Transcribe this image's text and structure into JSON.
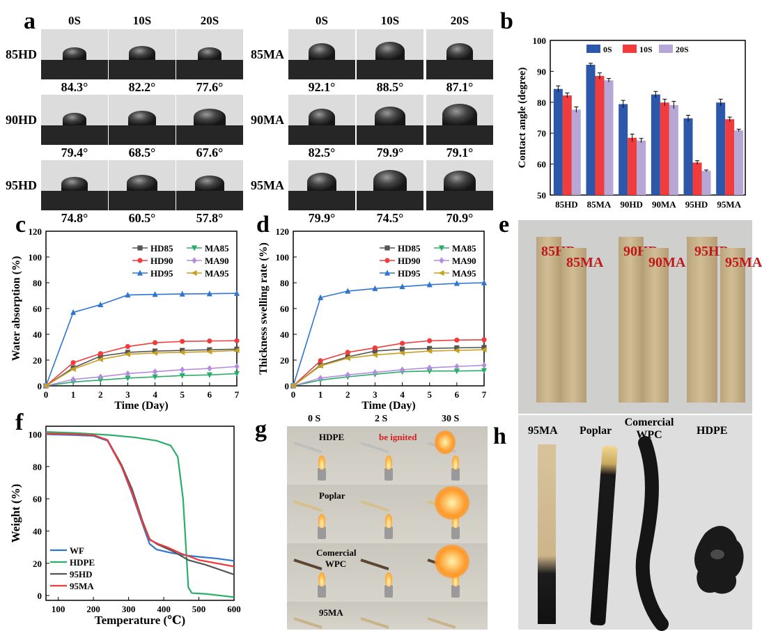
{
  "panel_labels": {
    "a": "a",
    "b": "b",
    "c": "c",
    "d": "d",
    "e": "e",
    "f": "f",
    "g": "g",
    "h": "h"
  },
  "panel_a": {
    "time_headers": [
      "0S",
      "10S",
      "20S"
    ],
    "left": {
      "rows": [
        {
          "label": "85HD",
          "angles": [
            "84.3°",
            "82.2°",
            "77.6°"
          ]
        },
        {
          "label": "90HD",
          "angles": [
            "79.4°",
            "68.5°",
            "67.6°"
          ]
        },
        {
          "label": "95HD",
          "angles": [
            "74.8°",
            "60.5°",
            "57.8°"
          ]
        }
      ]
    },
    "right": {
      "rows": [
        {
          "label": "85MA",
          "angles": [
            "92.1°",
            "88.5°",
            "87.1°"
          ]
        },
        {
          "label": "90MA",
          "angles": [
            "82.5°",
            "79.9°",
            "79.1°"
          ]
        },
        {
          "label": "95MA",
          "angles": [
            "79.9°",
            "74.5°",
            "70.9°"
          ]
        }
      ]
    }
  },
  "panel_e": {
    "labels": [
      "85HD",
      "85MA",
      "90HD",
      "90MA",
      "95HD",
      "95MA"
    ]
  },
  "panel_g": {
    "headers": [
      "0 S",
      "2 S",
      "30 S"
    ],
    "ignited_note": "be ignited",
    "rows": [
      "HDPE",
      "Poplar",
      "Comercial WPC",
      "95MA"
    ]
  },
  "panel_h": {
    "labels": [
      "95MA",
      "Poplar",
      "Comercial WPC",
      "HDPE"
    ]
  },
  "chart_data": [
    {
      "id": "b",
      "type": "bar",
      "categories": [
        "85HD",
        "85MA",
        "90HD",
        "90MA",
        "95HD",
        "95MA"
      ],
      "series": [
        {
          "name": "0S",
          "color": "#2d57a8",
          "values": [
            84.3,
            92.1,
            79.4,
            82.5,
            74.8,
            79.9
          ]
        },
        {
          "name": "10S",
          "color": "#f03c3c",
          "values": [
            82.2,
            88.5,
            68.5,
            79.9,
            60.5,
            74.5
          ]
        },
        {
          "name": "20S",
          "color": "#b7a7d6",
          "values": [
            77.6,
            87.1,
            67.6,
            79.1,
            57.8,
            70.9
          ]
        }
      ],
      "errors": [
        [
          1,
          0.5,
          1.2,
          1,
          1,
          1.1
        ],
        [
          0.8,
          1,
          1.2,
          1.1,
          0.6,
          0.7
        ],
        [
          0.9,
          0.6,
          0.7,
          1.2,
          0.3,
          0.4
        ]
      ],
      "ylabel": "Contact angle (degree)",
      "ylim": [
        50,
        100
      ],
      "yticks": [
        50,
        60,
        70,
        80,
        90,
        100
      ],
      "legend": "top-center"
    },
    {
      "id": "c",
      "type": "line",
      "x": [
        0,
        1,
        2,
        3,
        4,
        5,
        6,
        7
      ],
      "series": [
        {
          "name": "HD85",
          "color": "#555555",
          "marker": "square",
          "values": [
            0,
            14,
            23,
            26,
            27,
            27.5,
            28,
            28.5
          ]
        },
        {
          "name": "HD90",
          "color": "#f03c3c",
          "marker": "circle",
          "values": [
            0,
            18,
            25,
            30.5,
            33.5,
            34.5,
            34.8,
            35
          ]
        },
        {
          "name": "HD95",
          "color": "#2f74d0",
          "marker": "triangle-up",
          "values": [
            0,
            57,
            63,
            70.5,
            71,
            71.3,
            71.5,
            71.8
          ]
        },
        {
          "name": "MA85",
          "color": "#2aad6a",
          "marker": "triangle-down",
          "values": [
            0,
            3,
            4.5,
            6,
            7,
            8,
            8.5,
            9.5
          ]
        },
        {
          "name": "MA90",
          "color": "#b48be0",
          "marker": "diamond",
          "values": [
            0,
            5,
            7,
            9.5,
            11,
            12.5,
            13.5,
            15
          ]
        },
        {
          "name": "MA95",
          "color": "#c8a020",
          "marker": "triangle-left",
          "values": [
            0,
            13,
            20.5,
            24.5,
            25.5,
            26,
            26.5,
            27.5
          ]
        }
      ],
      "xlabel": "Time (Day)",
      "ylabel": "Water absorption (%)",
      "xlim": [
        0,
        7
      ],
      "ylim": [
        0,
        120
      ],
      "xticks": [
        0,
        1,
        2,
        3,
        4,
        5,
        6,
        7
      ],
      "yticks": [
        0,
        20,
        40,
        60,
        80,
        100,
        120
      ],
      "legend": "upper-right"
    },
    {
      "id": "d",
      "type": "line",
      "x": [
        0,
        1,
        2,
        3,
        4,
        5,
        6,
        7
      ],
      "series": [
        {
          "name": "HD85",
          "color": "#555555",
          "marker": "square",
          "values": [
            0,
            16,
            22.5,
            27,
            28.5,
            29,
            29.5,
            29.8
          ]
        },
        {
          "name": "HD90",
          "color": "#f03c3c",
          "marker": "circle",
          "values": [
            0,
            19.5,
            26,
            29.5,
            33,
            35,
            35.5,
            35.8
          ]
        },
        {
          "name": "HD95",
          "color": "#2f74d0",
          "marker": "triangle-up",
          "values": [
            0,
            68.5,
            73.5,
            75.5,
            77,
            78.5,
            79.5,
            80
          ]
        },
        {
          "name": "MA85",
          "color": "#2aad6a",
          "marker": "triangle-down",
          "values": [
            0,
            4.5,
            7,
            9,
            11,
            11.5,
            11.5,
            11.8
          ]
        },
        {
          "name": "MA90",
          "color": "#b48be0",
          "marker": "diamond",
          "values": [
            0,
            6,
            8.5,
            10.5,
            12.5,
            14,
            15,
            16
          ]
        },
        {
          "name": "MA95",
          "color": "#c8a020",
          "marker": "triangle-left",
          "values": [
            0,
            15.5,
            21.5,
            24,
            25.5,
            27,
            27.5,
            28
          ]
        }
      ],
      "xlabel": "Time (Day)",
      "ylabel": "Thickness swelling rate (%)",
      "xlim": [
        0,
        7
      ],
      "ylim": [
        0,
        120
      ],
      "xticks": [
        0,
        1,
        2,
        3,
        4,
        5,
        6,
        7
      ],
      "yticks": [
        0,
        20,
        40,
        60,
        80,
        100,
        120
      ],
      "legend": "upper-right"
    },
    {
      "id": "f",
      "type": "line",
      "series": [
        {
          "name": "WF",
          "color": "#2f74d0",
          "points": [
            [
              65,
              100
            ],
            [
              150,
              99.5
            ],
            [
              200,
              99
            ],
            [
              240,
              96
            ],
            [
              280,
              80
            ],
            [
              310,
              63
            ],
            [
              340,
              44
            ],
            [
              360,
              32
            ],
            [
              380,
              28.5
            ],
            [
              420,
              26.5
            ],
            [
              460,
              25
            ],
            [
              500,
              24
            ],
            [
              550,
              23
            ],
            [
              600,
              21.5
            ]
          ]
        },
        {
          "name": "HDPE",
          "color": "#2aad6a",
          "points": [
            [
              65,
              101.5
            ],
            [
              150,
              100.8
            ],
            [
              250,
              99.5
            ],
            [
              320,
              98
            ],
            [
              380,
              96
            ],
            [
              420,
              93
            ],
            [
              440,
              86
            ],
            [
              455,
              60
            ],
            [
              470,
              5
            ],
            [
              480,
              1.5
            ],
            [
              520,
              1
            ],
            [
              560,
              0
            ],
            [
              600,
              -1
            ]
          ]
        },
        {
          "name": "95HD",
          "color": "#555555",
          "points": [
            [
              65,
              100.5
            ],
            [
              150,
              100
            ],
            [
              200,
              99.5
            ],
            [
              240,
              96.5
            ],
            [
              280,
              81
            ],
            [
              310,
              66
            ],
            [
              340,
              46
            ],
            [
              360,
              35
            ],
            [
              380,
              32
            ],
            [
              400,
              30
            ],
            [
              430,
              27
            ],
            [
              470,
              22
            ],
            [
              520,
              19
            ],
            [
              560,
              16
            ],
            [
              600,
              13
            ]
          ]
        },
        {
          "name": "95MA",
          "color": "#f03c3c",
          "points": [
            [
              65,
              100.5
            ],
            [
              150,
              100
            ],
            [
              200,
              99.5
            ],
            [
              240,
              96.5
            ],
            [
              280,
              80
            ],
            [
              310,
              64
            ],
            [
              340,
              45
            ],
            [
              360,
              34.5
            ],
            [
              385,
              32
            ],
            [
              410,
              30
            ],
            [
              430,
              28
            ],
            [
              450,
              26
            ],
            [
              470,
              24.5
            ],
            [
              500,
              22
            ],
            [
              550,
              20
            ],
            [
              600,
              18
            ]
          ]
        }
      ],
      "xlabel": "Temperature (℃)",
      "ylabel": "Weight (%)",
      "xlim": [
        65,
        600
      ],
      "ylim": [
        -3,
        105
      ],
      "xticks": [
        100,
        200,
        300,
        400,
        500,
        600
      ],
      "yticks": [
        0,
        20,
        40,
        60,
        80,
        100
      ],
      "legend": "lower-left"
    }
  ]
}
